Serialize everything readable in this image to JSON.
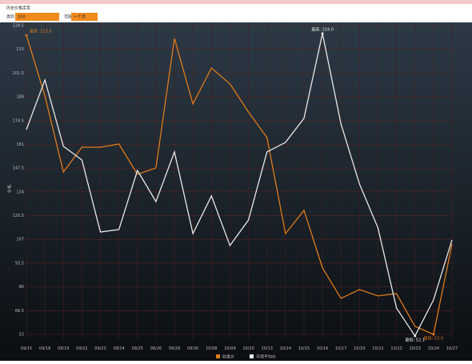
{
  "header": {
    "title": "历史价格走势",
    "category_label": "类别",
    "category_value": "100",
    "range_label": "范围",
    "range_value": "一个月"
  },
  "chart_data": {
    "type": "line",
    "y_label": "价格",
    "categories": [
      "09/15",
      "09/18",
      "09/19",
      "09/22",
      "09/23",
      "09/24",
      "09/25",
      "09/26",
      "09/29",
      "09/30",
      "10/08",
      "10/09",
      "10/10",
      "10/13",
      "10/14",
      "10/15",
      "10/16",
      "10/17",
      "10/20",
      "10/21",
      "10/22",
      "10/23",
      "10/24",
      "10/27"
    ],
    "series": [
      {
        "name": "收盘价",
        "color": "#e07b1a",
        "values": [
          223.0,
          188.5,
          145.3,
          159.4,
          159.4,
          161.2,
          144.0,
          147.6,
          221.2,
          184.0,
          204.4,
          195.4,
          179.4,
          164.9,
          110.3,
          123.5,
          90.8,
          73.5,
          78.5,
          74.9,
          76.2,
          57.6,
          53.0,
          104.4
        ],
        "max_label": "最高: 223.0",
        "min_label": "最低: 53.0"
      },
      {
        "name": "市场平均价",
        "color": "#e8e8e8",
        "values": [
          169.4,
          197.6,
          159.9,
          152.1,
          111.2,
          112.6,
          146.2,
          128.5,
          156.7,
          110.3,
          131.7,
          103.5,
          118.0,
          156.7,
          162.1,
          175.8,
          224.0,
          172.6,
          138.5,
          113.5,
          68.0,
          52.1,
          72.6,
          106.7
        ],
        "max_label": "最高: 224.0",
        "min_label": "最低: 52.1"
      }
    ],
    "ylim": [
      50,
      230
    ],
    "yticks": [
      53.0,
      66.5,
      80.0,
      93.5,
      107.0,
      120.5,
      134.0,
      147.5,
      161.0,
      174.5,
      188.0,
      201.5,
      215.0,
      228.5
    ],
    "grid": true
  }
}
